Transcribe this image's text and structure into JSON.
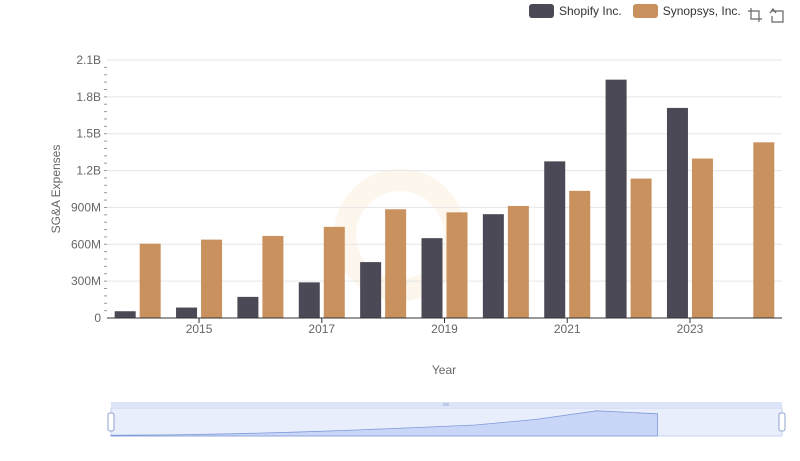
{
  "chart_data": {
    "type": "bar",
    "title": "",
    "xlabel": "Year",
    "ylabel": "SG&A Expenses",
    "categories": [
      "2014",
      "2015",
      "2016",
      "2017",
      "2018",
      "2019",
      "2020",
      "2021",
      "2022",
      "2023",
      "2024"
    ],
    "x_tick_labels": [
      "2015",
      "2017",
      "2019",
      "2021",
      "2023"
    ],
    "y_ticks": [
      0,
      300000000,
      600000000,
      900000000,
      1200000000,
      1500000000,
      1800000000,
      2100000000
    ],
    "y_tick_labels": [
      "0",
      "300M",
      "600M",
      "900M",
      "1.2B",
      "1.5B",
      "1.8B",
      "2.1B"
    ],
    "ylim": [
      0,
      2100000000
    ],
    "grid": true,
    "legend_position": "top-right",
    "series": [
      {
        "name": "Shopify Inc.",
        "color": "#4a4955",
        "values": [
          55000000,
          85000000,
          172000000,
          290000000,
          455000000,
          650000000,
          845000000,
          1275000000,
          1940000000,
          1710000000,
          null
        ]
      },
      {
        "name": "Synopsys, Inc.",
        "color": "#c9915e",
        "values": [
          605000000,
          638000000,
          668000000,
          742000000,
          885000000,
          860000000,
          912000000,
          1035000000,
          1135000000,
          1298000000,
          1430000000
        ]
      }
    ]
  },
  "legend": {
    "items": [
      {
        "label": "Shopify Inc.",
        "color": "#4a4955"
      },
      {
        "label": "Synopsys, Inc.",
        "color": "#c9915e"
      }
    ]
  },
  "toolbox": {
    "zoom_icon": "zoom-icon",
    "restore_icon": "restore-icon"
  },
  "datazoom": {
    "start_percent": 0,
    "end_percent": 100
  }
}
